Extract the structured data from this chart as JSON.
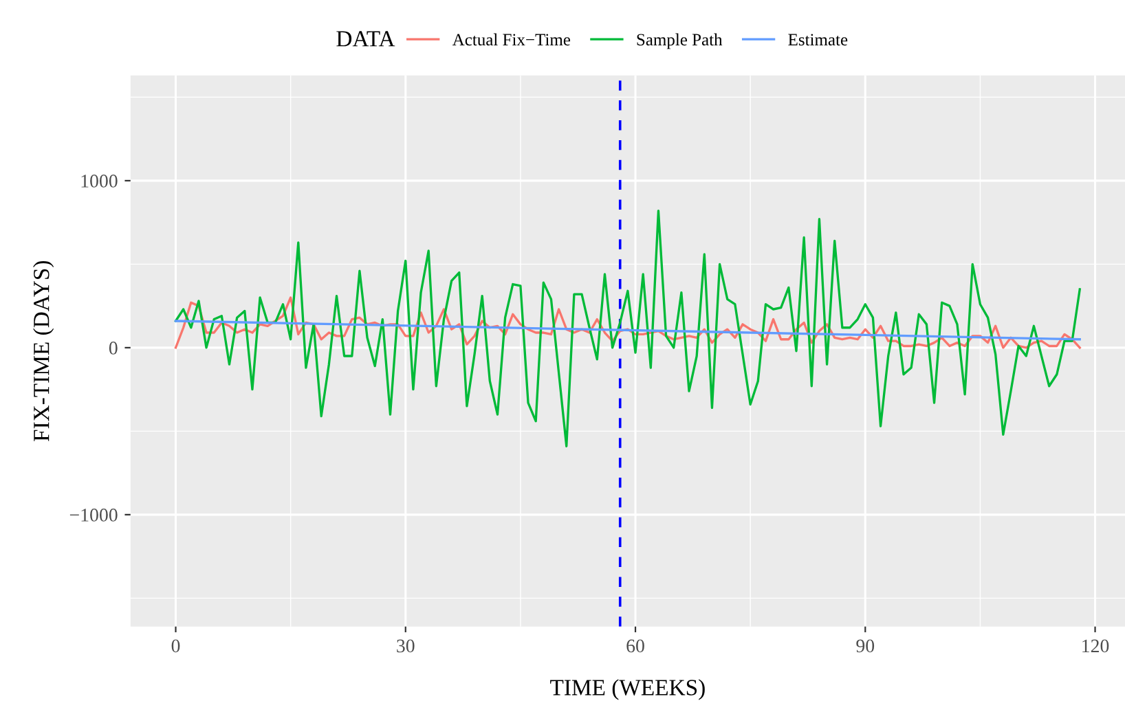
{
  "chart_data": {
    "type": "line",
    "xlabel": "TIME (WEEKS)",
    "ylabel": "FIX-TIME (DAYS)",
    "legend_title": "DATA",
    "xlim": [
      -5.9,
      123.9
    ],
    "xticks": [
      0,
      30,
      60,
      90,
      120
    ],
    "ylim": [
      -1670,
      1630
    ],
    "yticks": [
      {
        "value": -1000,
        "label": "−1000"
      },
      0,
      1000
    ],
    "grid": true,
    "legend": "top",
    "marker": "none",
    "line_style": "solid",
    "ref_lines": [
      {
        "axis": "x",
        "value": 58,
        "label": null,
        "color": "#0000ff",
        "line_style": "dashed"
      }
    ],
    "series": [
      {
        "name": "Actual Fix−Time",
        "color": "#f8766d",
        "x": [
          0,
          1,
          2,
          3,
          4,
          5,
          6,
          7,
          8,
          9,
          10,
          11,
          12,
          13,
          14,
          15,
          16,
          17,
          18,
          19,
          20,
          21,
          22,
          23,
          24,
          25,
          26,
          27,
          28,
          29,
          30,
          31,
          32,
          33,
          34,
          35,
          36,
          37,
          38,
          39,
          40,
          41,
          42,
          43,
          44,
          45,
          46,
          47,
          48,
          49,
          50,
          51,
          52,
          53,
          54,
          55,
          56,
          57,
          58,
          59,
          60,
          61,
          62,
          63,
          64,
          65,
          66,
          67,
          68,
          69,
          70,
          71,
          72,
          73,
          74,
          75,
          76,
          77,
          78,
          79,
          80,
          81,
          82,
          83,
          84,
          85,
          86,
          87,
          88,
          89,
          90,
          91,
          92,
          93,
          94,
          95,
          96,
          97,
          98,
          99,
          100,
          101,
          102,
          103,
          104,
          105,
          106,
          107,
          108,
          109,
          110,
          111,
          112,
          113,
          114,
          115,
          116,
          117,
          118
        ],
        "values": [
          0,
          120,
          270,
          250,
          90,
          90,
          150,
          130,
          90,
          110,
          90,
          140,
          130,
          160,
          190,
          300,
          80,
          150,
          140,
          50,
          90,
          70,
          70,
          170,
          180,
          140,
          150,
          130,
          140,
          140,
          70,
          70,
          210,
          90,
          130,
          230,
          110,
          140,
          20,
          70,
          160,
          120,
          130,
          80,
          200,
          140,
          110,
          90,
          90,
          80,
          230,
          110,
          90,
          110,
          90,
          170,
          90,
          40,
          100,
          110,
          80,
          80,
          90,
          100,
          70,
          50,
          60,
          70,
          60,
          110,
          30,
          80,
          110,
          60,
          140,
          110,
          90,
          40,
          170,
          50,
          50,
          110,
          150,
          30,
          100,
          140,
          60,
          50,
          60,
          50,
          110,
          60,
          130,
          40,
          40,
          10,
          10,
          20,
          10,
          30,
          60,
          10,
          30,
          10,
          70,
          70,
          30,
          130,
          0,
          60,
          10,
          0,
          30,
          40,
          10,
          10,
          80,
          50,
          0
        ]
      },
      {
        "name": "Sample Path",
        "color": "#00ba38",
        "x": [
          0,
          1,
          2,
          3,
          4,
          5,
          6,
          7,
          8,
          9,
          10,
          11,
          12,
          13,
          14,
          15,
          16,
          17,
          18,
          19,
          20,
          21,
          22,
          23,
          24,
          25,
          26,
          27,
          28,
          29,
          30,
          31,
          32,
          33,
          34,
          35,
          36,
          37,
          38,
          39,
          40,
          41,
          42,
          43,
          44,
          45,
          46,
          47,
          48,
          49,
          50,
          51,
          52,
          53,
          54,
          55,
          56,
          57,
          58,
          59,
          60,
          61,
          62,
          63,
          64,
          65,
          66,
          67,
          68,
          69,
          70,
          71,
          72,
          73,
          74,
          75,
          76,
          77,
          78,
          79,
          80,
          81,
          82,
          83,
          84,
          85,
          86,
          87,
          88,
          89,
          90,
          91,
          92,
          93,
          94,
          95,
          96,
          97,
          98,
          99,
          100,
          101,
          102,
          103,
          104,
          105,
          106,
          107,
          108,
          109,
          110,
          111,
          112,
          113,
          114,
          115,
          116,
          117,
          118
        ],
        "values": [
          160,
          230,
          120,
          280,
          0,
          170,
          190,
          -100,
          180,
          220,
          -250,
          300,
          150,
          150,
          260,
          50,
          630,
          -120,
          140,
          -410,
          -100,
          310,
          -50,
          -50,
          460,
          60,
          -110,
          170,
          -400,
          220,
          520,
          -250,
          330,
          580,
          -230,
          170,
          400,
          450,
          -350,
          -40,
          310,
          -200,
          -400,
          180,
          380,
          370,
          -330,
          -440,
          390,
          290,
          -150,
          -590,
          320,
          320,
          120,
          -70,
          440,
          0,
          150,
          340,
          -30,
          440,
          -120,
          820,
          70,
          0,
          330,
          -260,
          -50,
          560,
          -360,
          500,
          290,
          260,
          -40,
          -340,
          -200,
          260,
          230,
          240,
          360,
          -20,
          660,
          -230,
          770,
          -100,
          640,
          120,
          120,
          170,
          260,
          180,
          -470,
          -50,
          210,
          -160,
          -120,
          200,
          140,
          -330,
          270,
          250,
          140,
          -280,
          500,
          260,
          180,
          -40,
          -520,
          -260,
          10,
          -50,
          130,
          -50,
          -230,
          -160,
          40,
          40,
          350
        ]
      },
      {
        "name": "Estimate",
        "color": "#619cff",
        "x": [
          0,
          118
        ],
        "values": [
          160,
          50
        ]
      }
    ]
  }
}
